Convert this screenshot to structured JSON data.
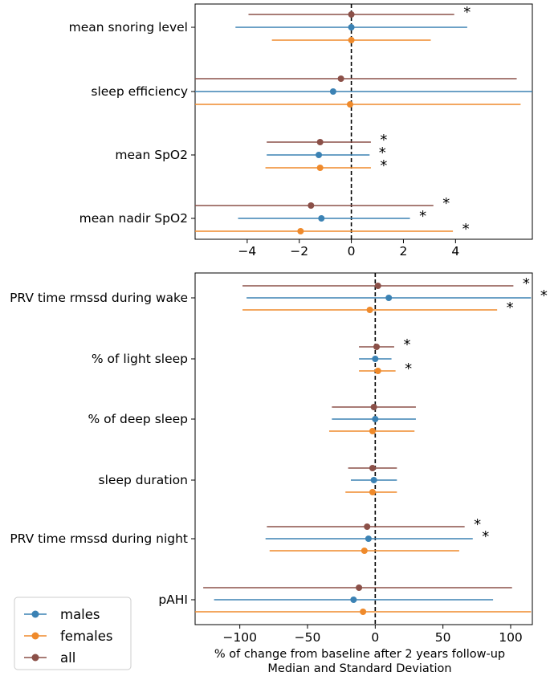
{
  "colors": {
    "males": "#3b82b4",
    "females": "#ef8a2b",
    "all": "#8b5048"
  },
  "legend": [
    {
      "key": "males",
      "label": "males"
    },
    {
      "key": "females",
      "label": "females"
    },
    {
      "key": "all",
      "label": "all"
    }
  ],
  "chart_data": [
    {
      "type": "forest",
      "title": "",
      "xlabel": "",
      "xlim": [
        -6.0,
        6.95
      ],
      "xticks": [
        -4,
        -2,
        0,
        2,
        4
      ],
      "xtick_labels": [
        "−4",
        "−2",
        "0",
        "2",
        "4"
      ],
      "reference_line": 0,
      "categories": [
        "mean snoring level",
        "sleep efficiency",
        "mean SpO2",
        "mean nadir SpO2"
      ],
      "series": [
        {
          "key": "all",
          "median": [
            0.0,
            -0.4,
            -1.2,
            -1.55
          ],
          "lower": [
            -3.95,
            -6.8,
            -3.25,
            -6.15
          ],
          "upper": [
            3.95,
            6.35,
            0.75,
            3.15
          ],
          "significant": [
            true,
            false,
            true,
            true
          ]
        },
        {
          "key": "males",
          "median": [
            0.0,
            -0.7,
            -1.25,
            -1.15
          ],
          "lower": [
            -4.45,
            -8.1,
            -3.25,
            -4.35
          ],
          "upper": [
            4.45,
            9.8,
            0.7,
            2.25
          ],
          "significant": [
            false,
            false,
            true,
            true
          ]
        },
        {
          "key": "females",
          "median": [
            0.0,
            -0.05,
            -1.2,
            -1.95
          ],
          "lower": [
            -3.05,
            -6.6,
            -3.3,
            -7.8
          ],
          "upper": [
            3.05,
            6.5,
            0.75,
            3.9
          ],
          "significant": [
            false,
            false,
            true,
            true
          ]
        }
      ]
    },
    {
      "type": "forest",
      "title": "",
      "xlabel": "% of change from baseline after 2 years follow-up\nMedian and Standard Deviation",
      "xlim": [
        -133,
        116
      ],
      "xticks": [
        -100,
        -50,
        0,
        50,
        100
      ],
      "xtick_labels": [
        "−100",
        "−50",
        "0",
        "50",
        "100"
      ],
      "reference_line": 0,
      "categories": [
        "PRV time rmssd during wake",
        "% of light sleep",
        "% of deep sleep",
        "sleep duration",
        "PRV time rmssd during night",
        "pAHI"
      ],
      "series": [
        {
          "key": "all",
          "median": [
            2,
            1,
            -1,
            -2,
            -6,
            -12
          ],
          "lower": [
            -98,
            -12,
            -32,
            -20,
            -80,
            -127
          ],
          "upper": [
            102,
            14,
            30,
            16,
            66,
            101
          ],
          "significant": [
            true,
            true,
            false,
            false,
            true,
            false
          ]
        },
        {
          "key": "males",
          "median": [
            10,
            0,
            0,
            -1,
            -5,
            -16
          ],
          "lower": [
            -95,
            -12,
            -32,
            -18,
            -81,
            -119
          ],
          "upper": [
            115,
            12,
            30,
            16,
            72,
            87
          ],
          "significant": [
            true,
            false,
            false,
            false,
            true,
            false
          ]
        },
        {
          "key": "females",
          "median": [
            -4,
            2,
            -2,
            -2,
            -8,
            -9
          ],
          "lower": [
            -98,
            -12,
            -34,
            -22,
            -78,
            -133
          ],
          "upper": [
            90,
            15,
            29,
            16,
            62,
            115
          ],
          "significant": [
            true,
            true,
            false,
            false,
            false,
            false
          ]
        }
      ]
    }
  ]
}
